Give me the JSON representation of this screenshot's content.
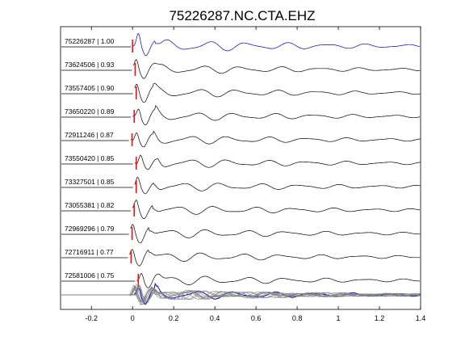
{
  "chart_data": {
    "type": "line",
    "title": "75226287.NC.CTA.EHZ",
    "xlabel": "",
    "ylabel": "",
    "xlim": [
      -0.35,
      1.4
    ],
    "x_ticks": [
      -0.2,
      0,
      0.2,
      0.4,
      0.6,
      0.8,
      1,
      1.2,
      1.4
    ],
    "x_tick_labels": [
      "-0.2",
      "0",
      "0.2",
      "0.4",
      "0.6",
      "0.8",
      "1",
      "1.2",
      "1.4"
    ],
    "grid": false,
    "legend": "none",
    "colors": {
      "reference": "#0000cc",
      "trace": "#000000",
      "stack": "#808080",
      "pick": "#ff0000"
    },
    "series": [
      {
        "label": "75226287 | 1.00",
        "pick_time": 0.0,
        "reference": true
      },
      {
        "label": "73624506 | 0.93",
        "pick_time": 0.005
      },
      {
        "label": "73557405 | 0.90",
        "pick_time": 0.01
      },
      {
        "label": "73650220 | 0.89",
        "pick_time": 0.0
      },
      {
        "label": "72911246 | 0.87",
        "pick_time": -0.01
      },
      {
        "label": "73550420 | 0.85",
        "pick_time": 0.01
      },
      {
        "label": "73327501 | 0.85",
        "pick_time": 0.01
      },
      {
        "label": "73055381 | 0.82",
        "pick_time": 0.0
      },
      {
        "label": "72969296 | 0.79",
        "pick_time": -0.01
      },
      {
        "label": "72716911 | 0.77",
        "pick_time": -0.015
      },
      {
        "label": "72581006 | 0.75",
        "pick_time": 0.02
      }
    ]
  }
}
